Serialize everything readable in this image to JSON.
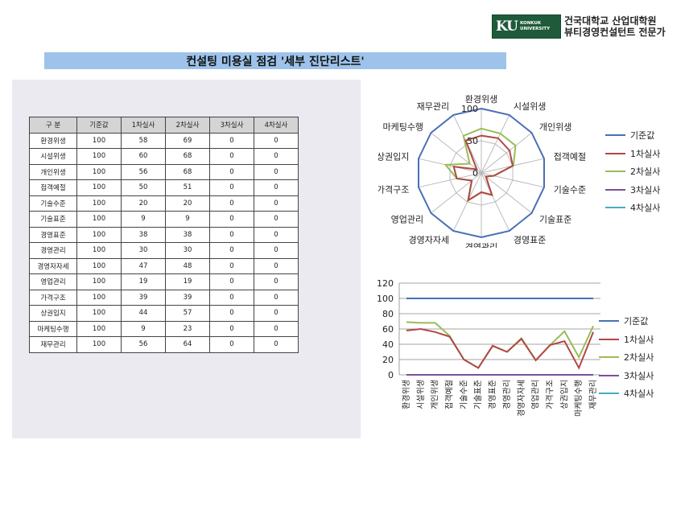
{
  "header": {
    "logo_mark": "KU",
    "logo_text_1": "KONKUK",
    "logo_text_2": "UNIVERSITY",
    "org_line1": "건국대학교 산업대학원",
    "org_line2": "뷰티경영컨설턴트 전문가",
    "title": "컨설팅 미용실 점검 '세부 진단리스트'"
  },
  "table": {
    "headers": [
      "구 분",
      "기준값",
      "1차실사",
      "2차실사",
      "3차실사",
      "4차실사"
    ],
    "rows": [
      [
        "환경위생",
        "100",
        "58",
        "69",
        "0",
        "0"
      ],
      [
        "시설위생",
        "100",
        "60",
        "68",
        "0",
        "0"
      ],
      [
        "개인위생",
        "100",
        "56",
        "68",
        "0",
        "0"
      ],
      [
        "접객예절",
        "100",
        "50",
        "51",
        "0",
        "0"
      ],
      [
        "기술수준",
        "100",
        "20",
        "20",
        "0",
        "0"
      ],
      [
        "기술표준",
        "100",
        "9",
        "9",
        "0",
        "0"
      ],
      [
        "경영표준",
        "100",
        "38",
        "38",
        "0",
        "0"
      ],
      [
        "경영관리",
        "100",
        "30",
        "30",
        "0",
        "0"
      ],
      [
        "경영자자세",
        "100",
        "47",
        "48",
        "0",
        "0"
      ],
      [
        "영업관리",
        "100",
        "19",
        "19",
        "0",
        "0"
      ],
      [
        "가격구조",
        "100",
        "39",
        "39",
        "0",
        "0"
      ],
      [
        "상권입지",
        "100",
        "44",
        "57",
        "0",
        "0"
      ],
      [
        "마케팅수행",
        "100",
        "9",
        "23",
        "0",
        "0"
      ],
      [
        "재무관리",
        "100",
        "56",
        "64",
        "0",
        "0"
      ]
    ]
  },
  "colors": {
    "기준값": "#4a6fb5",
    "1차실사": "#b04845",
    "2차실사": "#9bbb59",
    "3차실사": "#7a4f96",
    "4차실사": "#4aacc6"
  },
  "chart_data": [
    {
      "type": "radar",
      "categories": [
        "환경위생",
        "시설위생",
        "개인위생",
        "접객예절",
        "기술수준",
        "기술표준",
        "경영표준",
        "경영관리",
        "경영자자세",
        "영업관리",
        "가격구조",
        "상권입지",
        "마케팅수행",
        "재무관리"
      ],
      "rticks": [
        "0",
        "50",
        "100"
      ],
      "rlim": [
        0,
        100
      ],
      "legend": "right",
      "series": [
        {
          "name": "기준값",
          "values": [
            100,
            100,
            100,
            100,
            100,
            100,
            100,
            100,
            100,
            100,
            100,
            100,
            100,
            100
          ]
        },
        {
          "name": "1차실사",
          "values": [
            58,
            60,
            56,
            50,
            20,
            9,
            38,
            30,
            47,
            19,
            39,
            44,
            9,
            56
          ]
        },
        {
          "name": "2차실사",
          "values": [
            69,
            68,
            68,
            51,
            20,
            9,
            38,
            30,
            48,
            19,
            39,
            57,
            23,
            64
          ]
        },
        {
          "name": "3차실사",
          "values": [
            0,
            0,
            0,
            0,
            0,
            0,
            0,
            0,
            0,
            0,
            0,
            0,
            0,
            0
          ]
        },
        {
          "name": "4차실사",
          "values": [
            0,
            0,
            0,
            0,
            0,
            0,
            0,
            0,
            0,
            0,
            0,
            0,
            0,
            0
          ]
        }
      ]
    },
    {
      "type": "line",
      "categories": [
        "환경위생",
        "시설위생",
        "개인위생",
        "접객예절",
        "기술수준",
        "기술표준",
        "경영표준",
        "경영관리",
        "경영자자세",
        "영업관리",
        "가격구조",
        "상권입지",
        "마케팅수행",
        "재무관리"
      ],
      "yticks": [
        "0",
        "20",
        "40",
        "60",
        "80",
        "100",
        "120"
      ],
      "ylim": [
        0,
        120
      ],
      "grid": true,
      "legend": "right",
      "series": [
        {
          "name": "기준값",
          "values": [
            100,
            100,
            100,
            100,
            100,
            100,
            100,
            100,
            100,
            100,
            100,
            100,
            100,
            100
          ]
        },
        {
          "name": "1차실사",
          "values": [
            58,
            60,
            56,
            50,
            20,
            9,
            38,
            30,
            47,
            19,
            39,
            44,
            9,
            56
          ]
        },
        {
          "name": "2차실사",
          "values": [
            69,
            68,
            68,
            51,
            20,
            9,
            38,
            30,
            48,
            19,
            39,
            57,
            23,
            64
          ]
        },
        {
          "name": "3차실사",
          "values": [
            0,
            0,
            0,
            0,
            0,
            0,
            0,
            0,
            0,
            0,
            0,
            0,
            0,
            0
          ]
        },
        {
          "name": "4차실사",
          "values": [
            0,
            0,
            0,
            0,
            0,
            0,
            0,
            0,
            0,
            0,
            0,
            0,
            0,
            0
          ]
        }
      ]
    }
  ]
}
